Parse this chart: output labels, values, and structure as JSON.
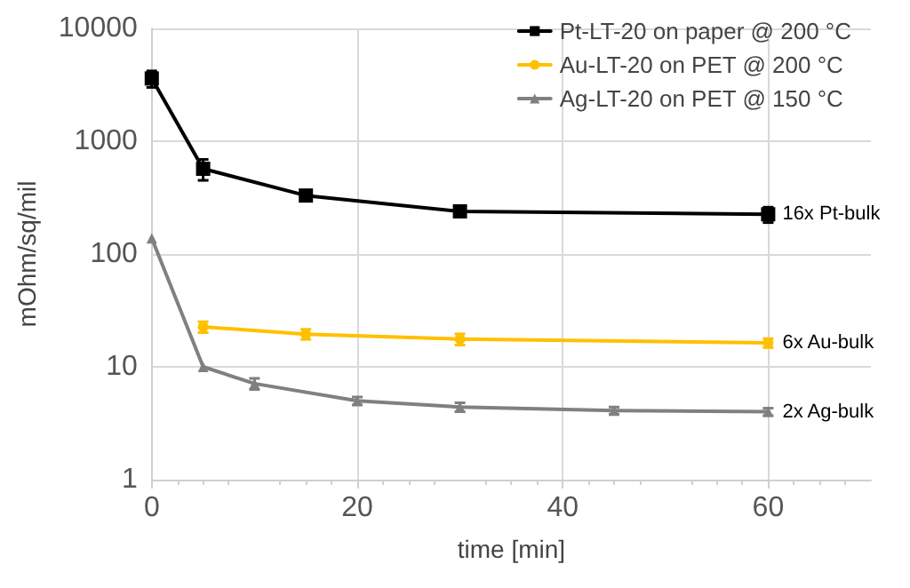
{
  "chart_data": {
    "type": "line",
    "xlabel": "time [min]",
    "ylabel": "mOhm/sq/mil",
    "log": "y",
    "grid": true,
    "legend": "top right",
    "xlim": [
      0,
      70
    ],
    "xticks": [
      0,
      20,
      40,
      60
    ],
    "ylim": [
      1,
      10000
    ],
    "yticks": [
      1,
      10,
      100,
      1000,
      10000
    ],
    "series": [
      {
        "name": "Pt-LT-20 on paper @ 200 °C",
        "color": "#000000",
        "marker": "square",
        "x": [
          0,
          5,
          15,
          30,
          60
        ],
        "values": [
          3600,
          570,
          330,
          239,
          225
        ],
        "errors": [
          600,
          120,
          30,
          25,
          35
        ]
      },
      {
        "name": "Au-LT-20 on PET @ 200 °C",
        "color": "#ffc000",
        "marker": "circle",
        "x": [
          5,
          15,
          30,
          60
        ],
        "values": [
          22.6,
          19.5,
          17.6,
          16.3
        ],
        "errors": [
          2.5,
          2,
          2,
          1.5
        ]
      },
      {
        "name": "Ag-LT-20 on PET @ 150 °C",
        "color": "#808080",
        "marker": "triangle",
        "x": [
          0,
          5,
          10,
          20,
          30,
          45,
          60
        ],
        "values": [
          138,
          10,
          7.1,
          5,
          4.4,
          4.1,
          4
        ],
        "errors": [
          null,
          null,
          0.8,
          0.4,
          0.4,
          0.3,
          0.3
        ]
      }
    ],
    "annotations": [
      "16x Pt-bulk",
      "6x Au-bulk",
      "2x Ag-bulk"
    ]
  }
}
